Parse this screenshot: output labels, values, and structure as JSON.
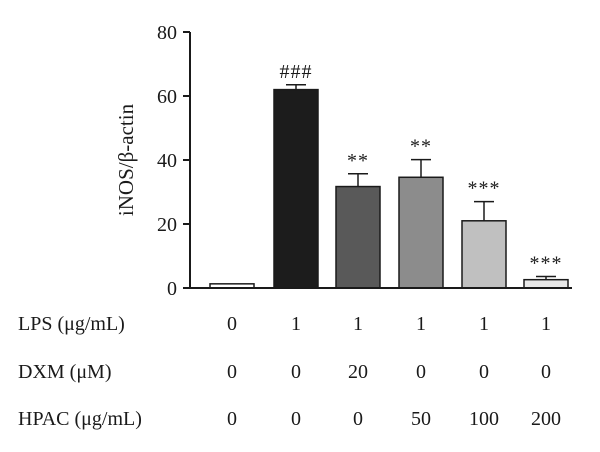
{
  "chart_data": {
    "type": "bar",
    "ylabel": "iNOS/β-actin",
    "ylim": [
      0,
      80
    ],
    "yticks": [
      "0",
      "20",
      "40",
      "60",
      "80"
    ],
    "values": [
      1.3,
      62.0,
      31.7,
      34.6,
      21.0,
      2.6
    ],
    "errors": [
      0.0,
      1.5,
      4.0,
      5.5,
      6.0,
      1.0
    ],
    "bar_colors": [
      "#ffffff",
      "#1c1c1c",
      "#595959",
      "#8c8c8c",
      "#c0c0c0",
      "#e8e8e8"
    ],
    "significance": [
      "",
      "###",
      "**",
      "**",
      "***",
      "***"
    ],
    "conditions": [
      {
        "label": "LPS (μg/mL)",
        "values": [
          "0",
          "1",
          "1",
          "1",
          "1",
          "1"
        ]
      },
      {
        "label": "DXM (μM)",
        "values": [
          "0",
          "0",
          "20",
          "0",
          "0",
          "0"
        ]
      },
      {
        "label": "HPAC (μg/mL)",
        "values": [
          "0",
          "0",
          "0",
          "50",
          "100",
          "200"
        ]
      }
    ]
  }
}
